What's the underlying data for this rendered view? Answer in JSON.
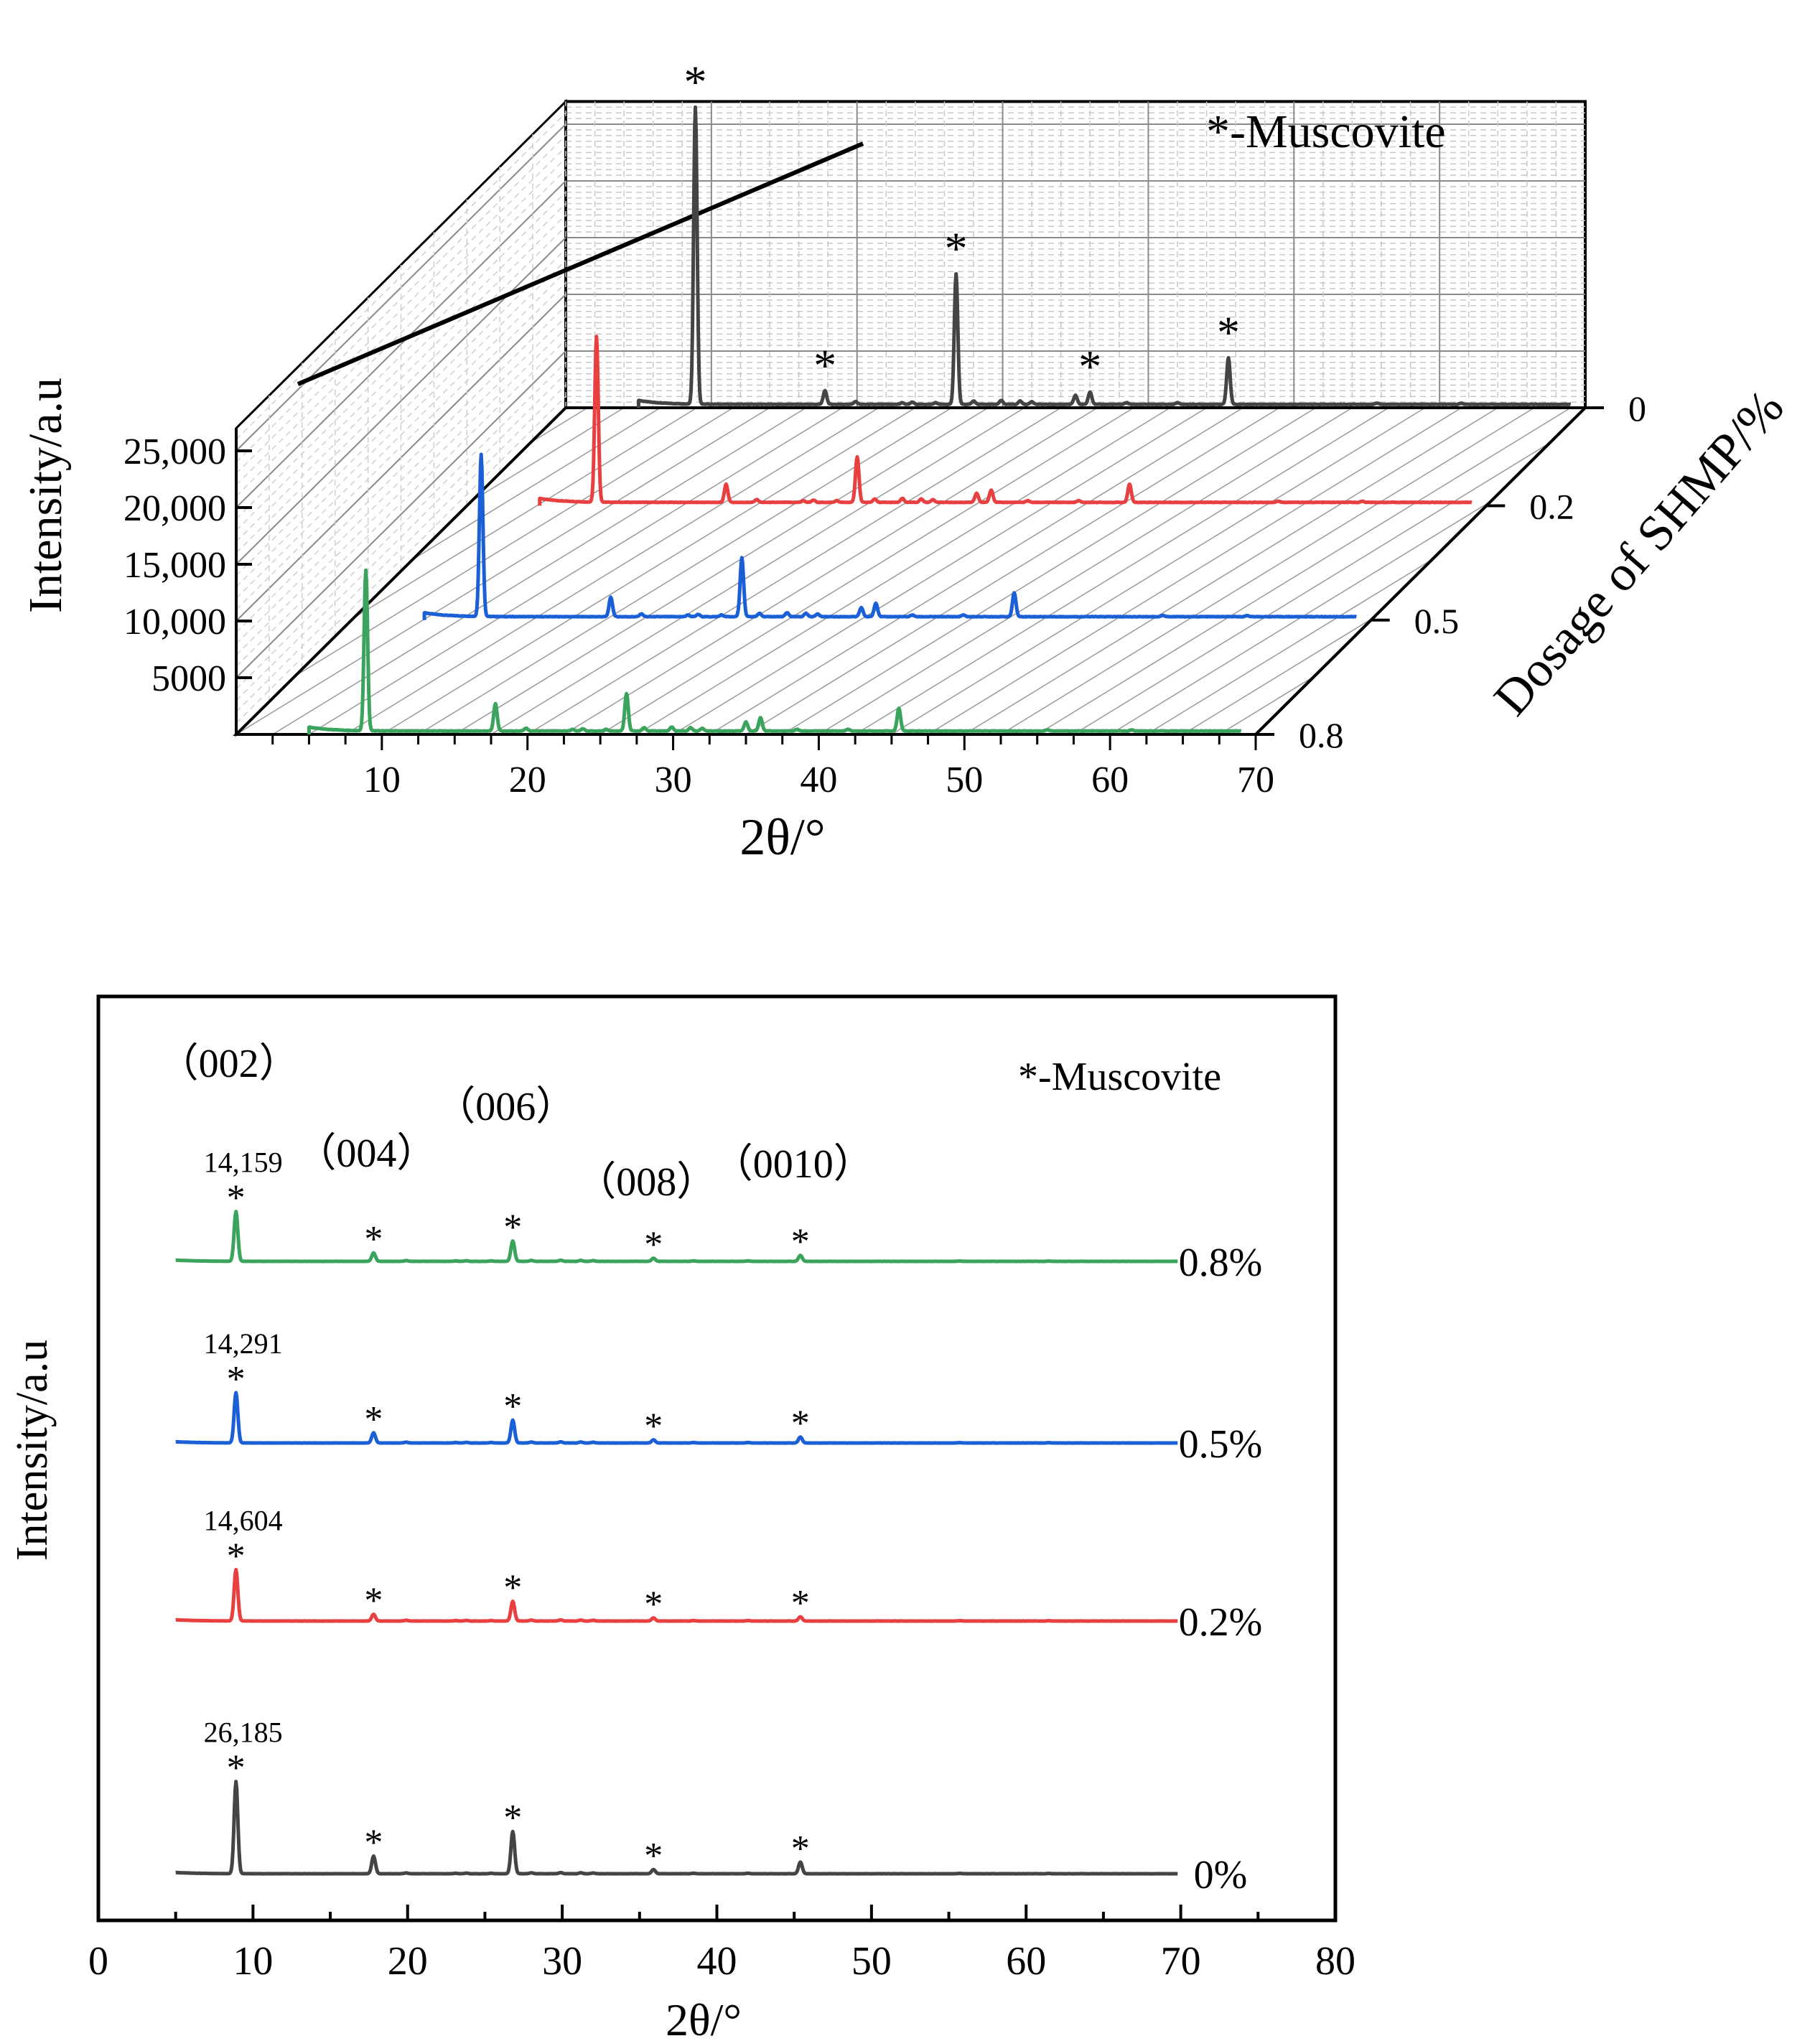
{
  "chart_data": [
    {
      "type": "line",
      "projection": "3d-waterfall",
      "xlabel": "2θ/°",
      "ylabel": "Intensity/a.u",
      "zlabel": "Dosage of SHMP/%",
      "xlim": [
        5,
        70
      ],
      "ylim": [
        0,
        27000
      ],
      "x_ticks": [
        "10",
        "20",
        "30",
        "40",
        "50",
        "60",
        "70"
      ],
      "y_ticks": [
        "5000",
        "10,000",
        "15,000",
        "20,000",
        "25,000"
      ],
      "y_tick_values": [
        5000,
        10000,
        15000,
        20000,
        25000
      ],
      "z_ticks": [
        "0",
        "0.2",
        "0.5",
        "0.8"
      ],
      "legend": "*-Muscovite",
      "series": [
        {
          "dosage": "0",
          "color": "#444444",
          "peak_heights": [
            26185,
            1200,
            11500,
            800,
            1100,
            4100
          ]
        },
        {
          "dosage": "0.2",
          "color": "#e84040",
          "peak_heights": [
            14604,
            1600,
            4000,
            800,
            1100,
            1600
          ]
        },
        {
          "dosage": "0.5",
          "color": "#1a5fd6",
          "peak_heights": [
            14291,
            1700,
            5200,
            800,
            1200,
            2100
          ]
        },
        {
          "dosage": "0.8",
          "color": "#3aa35c",
          "peak_heights": [
            14159,
            2400,
            3300,
            800,
            1200,
            2000
          ]
        }
      ],
      "peak_positions": [
        8.9,
        17.8,
        26.8,
        35.0,
        36.0,
        45.5
      ],
      "marked_peaks": [
        8.9,
        17.8,
        26.8,
        36.0,
        45.5
      ]
    },
    {
      "type": "line",
      "xlabel": "2θ/°",
      "ylabel": "Intensity/a.u",
      "xlim": [
        0,
        80
      ],
      "x_ticks": [
        "0",
        "10",
        "20",
        "30",
        "40",
        "50",
        "60",
        "70",
        "80"
      ],
      "legend": "*-Muscovite",
      "miller_indices": [
        {
          "label": "（002）",
          "x": 8.9
        },
        {
          "label": "（004）",
          "x": 17.8
        },
        {
          "label": "（006）",
          "x": 26.8
        },
        {
          "label": "（008）",
          "x": 35.9
        },
        {
          "label": "（0010）",
          "x": 45.4
        }
      ],
      "series": [
        {
          "name": "0.8%",
          "color": "#3aa35c",
          "peak_label": "14,159",
          "peak_heights": [
            14159,
            2400,
            5800,
            900,
            1700
          ]
        },
        {
          "name": "0.5%",
          "color": "#1a5fd6",
          "peak_label": "14,291",
          "peak_heights": [
            14291,
            2900,
            6500,
            900,
            1700
          ]
        },
        {
          "name": "0.2%",
          "color": "#e84040",
          "peak_label": "14,604",
          "peak_heights": [
            14604,
            1900,
            5600,
            900,
            1200
          ]
        },
        {
          "name": "0%",
          "color": "#444444",
          "peak_label": "26,185",
          "peak_heights": [
            26185,
            5000,
            12000,
            1200,
            3300
          ]
        }
      ],
      "peak_positions": [
        8.9,
        17.8,
        26.8,
        35.9,
        45.4
      ]
    }
  ]
}
